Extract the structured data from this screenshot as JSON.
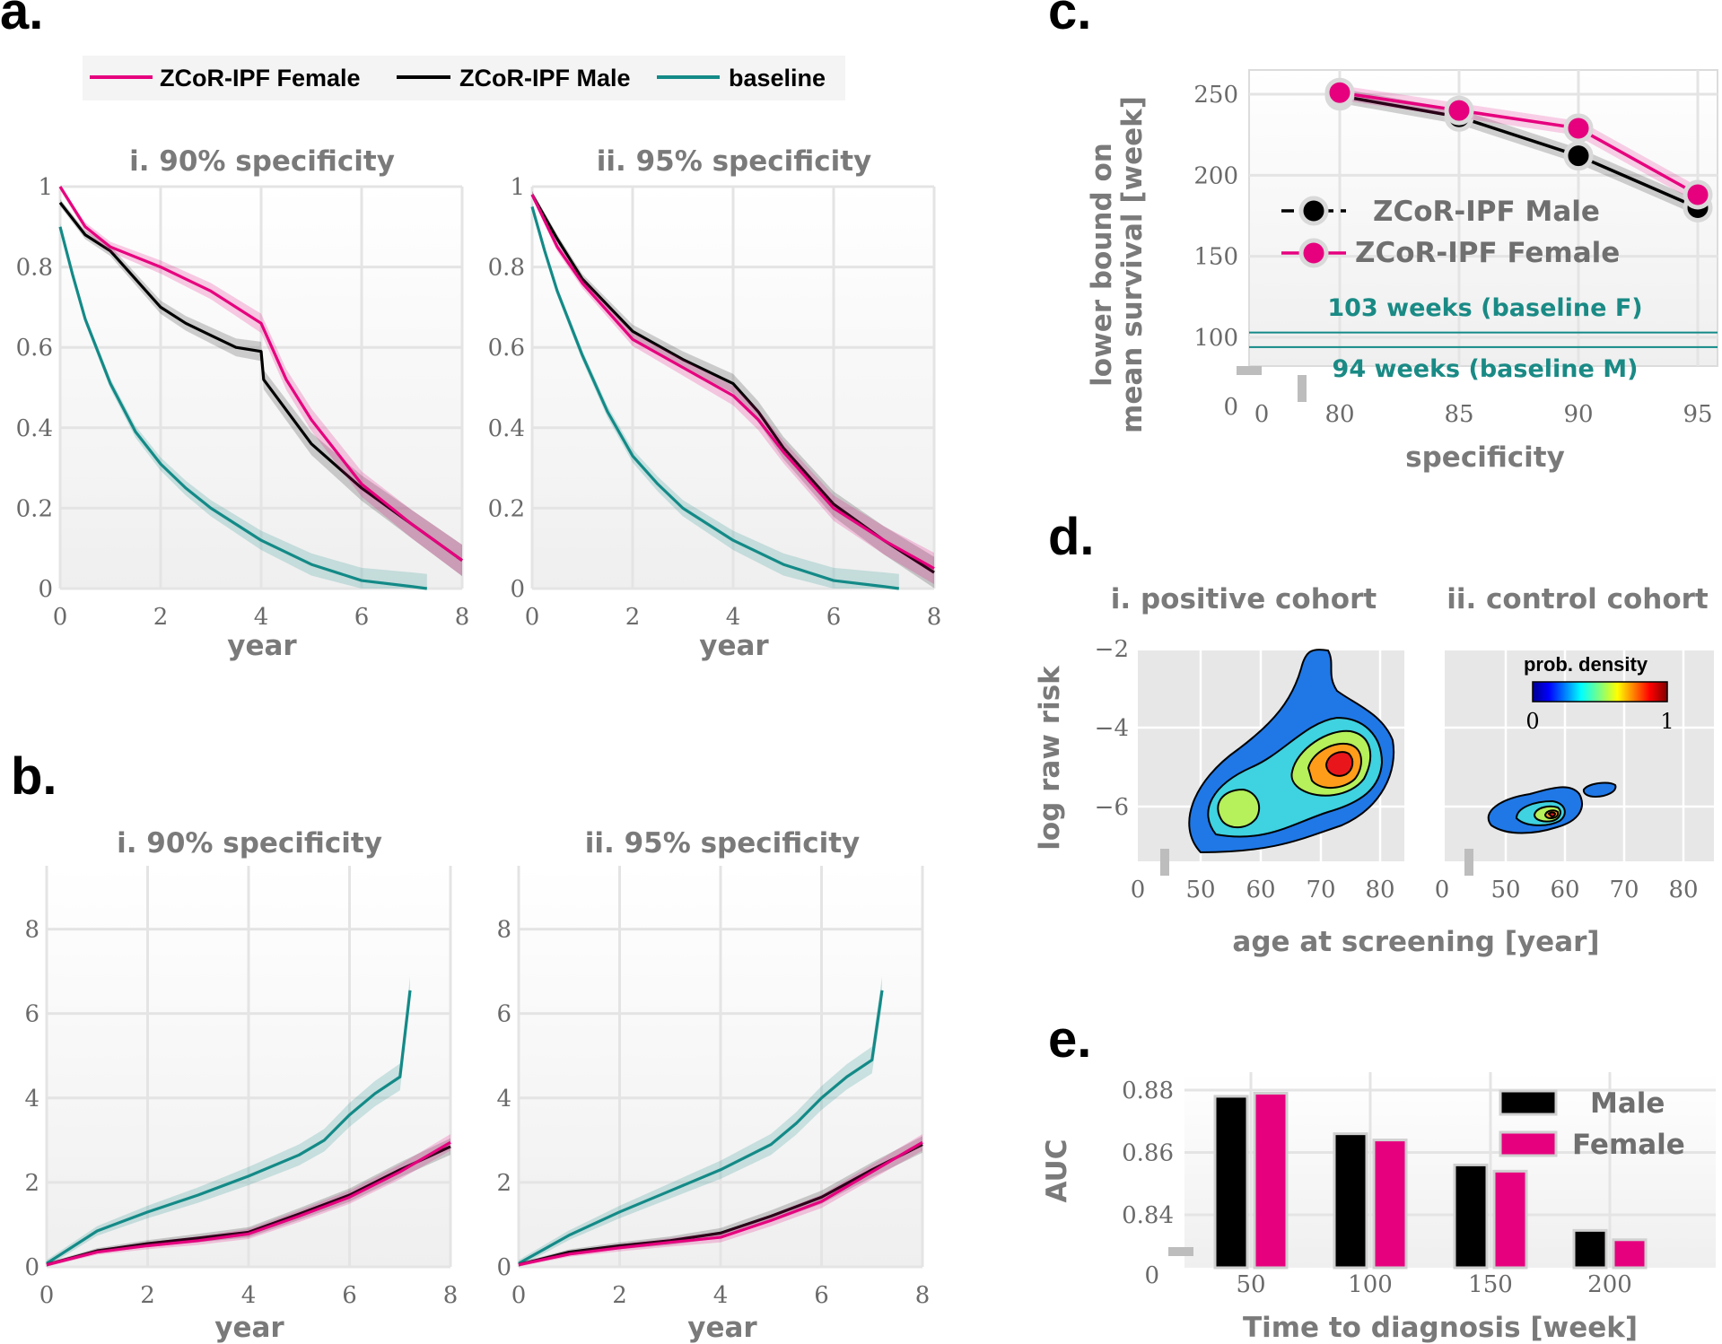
{
  "colors": {
    "female": "#e6007e",
    "male": "#000000",
    "baseline": "#138a87",
    "grid": "#e4e4e4",
    "axis_text": "#7a7a7a"
  },
  "panel_a": {
    "letter": "a.",
    "legend": [
      "ZCoR-IPF Female",
      "ZCoR-IPF Male",
      "baseline"
    ],
    "xlabel": "year",
    "xticks": [
      "0",
      "2",
      "4",
      "6",
      "8"
    ],
    "yticks": [
      "0",
      "0.2",
      "0.4",
      "0.6",
      "0.8",
      "1"
    ],
    "subplots": [
      {
        "title": "i. 90% specificity"
      },
      {
        "title": "ii. 95% specificity"
      }
    ]
  },
  "panel_b": {
    "letter": "b.",
    "xlabel": "year",
    "xticks": [
      "0",
      "2",
      "4",
      "6",
      "8"
    ],
    "yticks": [
      "0",
      "2",
      "4",
      "6",
      "8"
    ],
    "subplots": [
      {
        "title": "i. 90% specificity"
      },
      {
        "title": "ii. 95% specificity"
      }
    ]
  },
  "panel_c": {
    "letter": "c.",
    "ylabel_line1": "lower bound on",
    "ylabel_line2": "mean survival [week]",
    "xlabel": "specificity",
    "xticks": [
      "0",
      "80",
      "85",
      "90",
      "95"
    ],
    "yticks": [
      "0",
      "100",
      "150",
      "200",
      "250"
    ],
    "legend": [
      "ZCoR-IPF Male",
      "ZCoR-IPF Female"
    ],
    "annotations": [
      "103 weeks (baseline F)",
      "94 weeks (baseline M)"
    ]
  },
  "panel_d": {
    "letter": "d.",
    "titles": [
      "i. positive cohort",
      "ii. control cohort"
    ],
    "ylabel": "log raw risk",
    "xlabel": "age at screening [year]",
    "xticks": [
      "0",
      "50",
      "60",
      "70",
      "80"
    ],
    "yticks": [
      "−2",
      "−4",
      "−6"
    ],
    "colorbar_label": "prob. density",
    "colorbar_ticks": [
      "0",
      "1"
    ]
  },
  "panel_e": {
    "letter": "e.",
    "ylabel": "AUC",
    "xlabel": "Time to diagnosis [week]",
    "xticks": [
      "50",
      "100",
      "150",
      "200"
    ],
    "yticks": [
      "0",
      "0.84",
      "0.86",
      "0.88"
    ],
    "legend": [
      "Male",
      "Female"
    ]
  },
  "chart_data": [
    {
      "type": "line",
      "title": "i. 90% specificity",
      "xlabel": "year",
      "xlim": [
        0,
        8
      ],
      "ylim": [
        0,
        1
      ],
      "series": [
        {
          "name": "ZCoR-IPF Female",
          "x": [
            0,
            0.5,
            1,
            2,
            3,
            3.5,
            4,
            4.5,
            5,
            6,
            7,
            8
          ],
          "y": [
            1,
            0.9,
            0.85,
            0.8,
            0.74,
            0.7,
            0.66,
            0.52,
            0.42,
            0.26,
            0.16,
            0.07
          ]
        },
        {
          "name": "ZCoR-IPF Male",
          "x": [
            0,
            0.5,
            1,
            2,
            2.5,
            3,
            3.5,
            4,
            4.05,
            5,
            6,
            7,
            8
          ],
          "y": [
            0.96,
            0.88,
            0.84,
            0.7,
            0.66,
            0.63,
            0.6,
            0.59,
            0.52,
            0.36,
            0.25,
            0.16,
            0.07
          ]
        },
        {
          "name": "baseline",
          "x": [
            0,
            0.25,
            0.5,
            1,
            1.5,
            2,
            2.5,
            3,
            4,
            5,
            6,
            7,
            7.3
          ],
          "y": [
            0.9,
            0.78,
            0.67,
            0.51,
            0.39,
            0.31,
            0.25,
            0.2,
            0.12,
            0.06,
            0.02,
            0.005,
            0
          ]
        }
      ]
    },
    {
      "type": "line",
      "title": "ii. 95% specificity",
      "xlabel": "year",
      "xlim": [
        0,
        8
      ],
      "ylim": [
        0,
        1
      ],
      "series": [
        {
          "name": "ZCoR-IPF Female",
          "x": [
            0,
            0.5,
            1,
            2,
            3,
            4,
            4.5,
            5,
            6,
            7,
            8
          ],
          "y": [
            0.98,
            0.85,
            0.76,
            0.62,
            0.55,
            0.48,
            0.42,
            0.34,
            0.2,
            0.12,
            0.05
          ]
        },
        {
          "name": "ZCoR-IPF Male",
          "x": [
            0,
            0.5,
            1,
            2,
            3,
            4,
            4.5,
            5,
            6,
            7,
            8
          ],
          "y": [
            0.98,
            0.87,
            0.77,
            0.64,
            0.57,
            0.51,
            0.44,
            0.35,
            0.21,
            0.12,
            0.04
          ]
        },
        {
          "name": "baseline",
          "x": [
            0,
            0.25,
            0.5,
            1,
            1.5,
            2,
            2.5,
            3,
            4,
            5,
            6,
            7,
            7.3
          ],
          "y": [
            0.95,
            0.84,
            0.74,
            0.58,
            0.44,
            0.33,
            0.26,
            0.2,
            0.12,
            0.06,
            0.02,
            0.005,
            0
          ]
        }
      ]
    },
    {
      "type": "line",
      "title": "i. 90% specificity",
      "xlabel": "year",
      "xlim": [
        0,
        8
      ],
      "ylim": [
        0,
        9.5
      ],
      "series": [
        {
          "name": "ZCoR-IPF Female",
          "x": [
            0,
            1,
            2,
            3,
            4,
            5,
            6,
            7,
            8
          ],
          "y": [
            0.05,
            0.35,
            0.5,
            0.62,
            0.78,
            1.2,
            1.65,
            2.25,
            2.95
          ]
        },
        {
          "name": "ZCoR-IPF Male",
          "x": [
            0,
            1,
            2,
            3,
            4,
            5,
            6,
            7,
            8
          ],
          "y": [
            0.05,
            0.38,
            0.55,
            0.68,
            0.82,
            1.25,
            1.7,
            2.3,
            2.85
          ]
        },
        {
          "name": "baseline",
          "x": [
            0,
            1,
            2,
            3,
            4,
            5,
            5.5,
            6,
            6.5,
            7,
            7.2
          ],
          "y": [
            0.08,
            0.85,
            1.3,
            1.7,
            2.15,
            2.65,
            3.0,
            3.6,
            4.1,
            4.5,
            6.55
          ]
        }
      ]
    },
    {
      "type": "line",
      "title": "ii. 95% specificity",
      "xlabel": "year",
      "xlim": [
        0,
        8
      ],
      "ylim": [
        0,
        9.5
      ],
      "series": [
        {
          "name": "ZCoR-IPF Female",
          "x": [
            0,
            1,
            2,
            3,
            4,
            5,
            6,
            7,
            8
          ],
          "y": [
            0.05,
            0.3,
            0.45,
            0.58,
            0.7,
            1.1,
            1.55,
            2.25,
            2.95
          ]
        },
        {
          "name": "ZCoR-IPF Male",
          "x": [
            0,
            1,
            2,
            3,
            4,
            5,
            6,
            7,
            8
          ],
          "y": [
            0.05,
            0.35,
            0.5,
            0.62,
            0.8,
            1.2,
            1.65,
            2.3,
            2.9
          ]
        },
        {
          "name": "baseline",
          "x": [
            0,
            1,
            2,
            3,
            4,
            5,
            5.5,
            6,
            6.5,
            7,
            7.2
          ],
          "y": [
            0.08,
            0.75,
            1.3,
            1.8,
            2.3,
            2.9,
            3.4,
            4.0,
            4.5,
            4.9,
            6.55
          ]
        }
      ]
    },
    {
      "type": "line",
      "xlabel": "specificity",
      "ylabel": "lower bound on mean survival [week]",
      "ylim": [
        0,
        260
      ],
      "x": [
        80,
        85,
        90,
        95
      ],
      "series": [
        {
          "name": "ZCoR-IPF Male",
          "values": [
            249,
            236,
            212,
            180
          ]
        },
        {
          "name": "ZCoR-IPF Female",
          "values": [
            251,
            240,
            229,
            188
          ]
        }
      ],
      "hlines": [
        {
          "label": "103 weeks (baseline F)",
          "value": 103
        },
        {
          "label": "94 weeks (baseline M)",
          "value": 94
        }
      ]
    },
    {
      "type": "heatmap",
      "title": "i. positive cohort",
      "xlabel": "age at screening [year]",
      "ylabel": "log raw risk",
      "peak": {
        "x": 74,
        "y": -5.0
      },
      "colorbar": {
        "label": "prob. density",
        "range": [
          0,
          1
        ]
      }
    },
    {
      "type": "heatmap",
      "title": "ii. control cohort",
      "xlabel": "age at screening [year]",
      "ylabel": "log raw risk",
      "peak": {
        "x": 58,
        "y": -6.55
      },
      "colorbar": {
        "label": "prob. density",
        "range": [
          0,
          1
        ]
      }
    },
    {
      "type": "bar",
      "xlabel": "Time to diagnosis [week]",
      "ylabel": "AUC",
      "categories": [
        "50",
        "100",
        "150",
        "200"
      ],
      "series": [
        {
          "name": "Male",
          "values": [
            0.878,
            0.866,
            0.856,
            0.835
          ]
        },
        {
          "name": "Female",
          "values": [
            0.879,
            0.864,
            0.854,
            0.832
          ]
        }
      ]
    }
  ]
}
